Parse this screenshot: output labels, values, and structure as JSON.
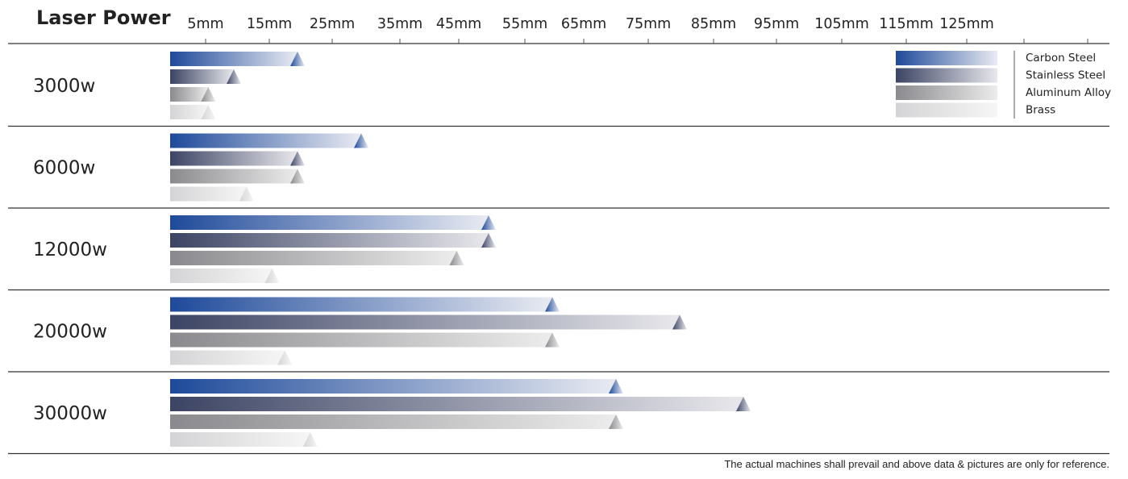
{
  "chart_data": {
    "type": "bar",
    "orientation": "horizontal",
    "title": "Laser Power",
    "x_tick_labels": [
      "5mm",
      "15mm",
      "25mm",
      "35mm",
      "45mm",
      "55mm",
      "65mm",
      "75mm",
      "85mm",
      "95mm",
      "105mm",
      "115mm",
      "125mm"
    ],
    "categories": [
      "3000w",
      "6000w",
      "12000w",
      "20000w",
      "30000w"
    ],
    "series": [
      {
        "name": "Carbon Steel",
        "values": [
          20,
          30,
          50,
          60,
          70
        ],
        "color_from": "#1e4a9a",
        "color_to": "#e9ebf2"
      },
      {
        "name": "Stainless Steel",
        "values": [
          10,
          20,
          50,
          80,
          90
        ],
        "color_from": "#3c4464",
        "color_to": "#e8e8ec"
      },
      {
        "name": "Aluminum Alloy",
        "values": [
          6,
          20,
          45,
          60,
          70
        ],
        "color_from": "#8a8a8e",
        "color_to": "#ececec"
      },
      {
        "name": "Brass",
        "values": [
          6,
          12,
          16,
          18,
          22
        ],
        "color_from": "#d4d4d6",
        "color_to": "#f6f6f6"
      }
    ],
    "legend_position": "top-right",
    "footnote": "The actual machines shall prevail and above data & pictures are only for reference."
  }
}
